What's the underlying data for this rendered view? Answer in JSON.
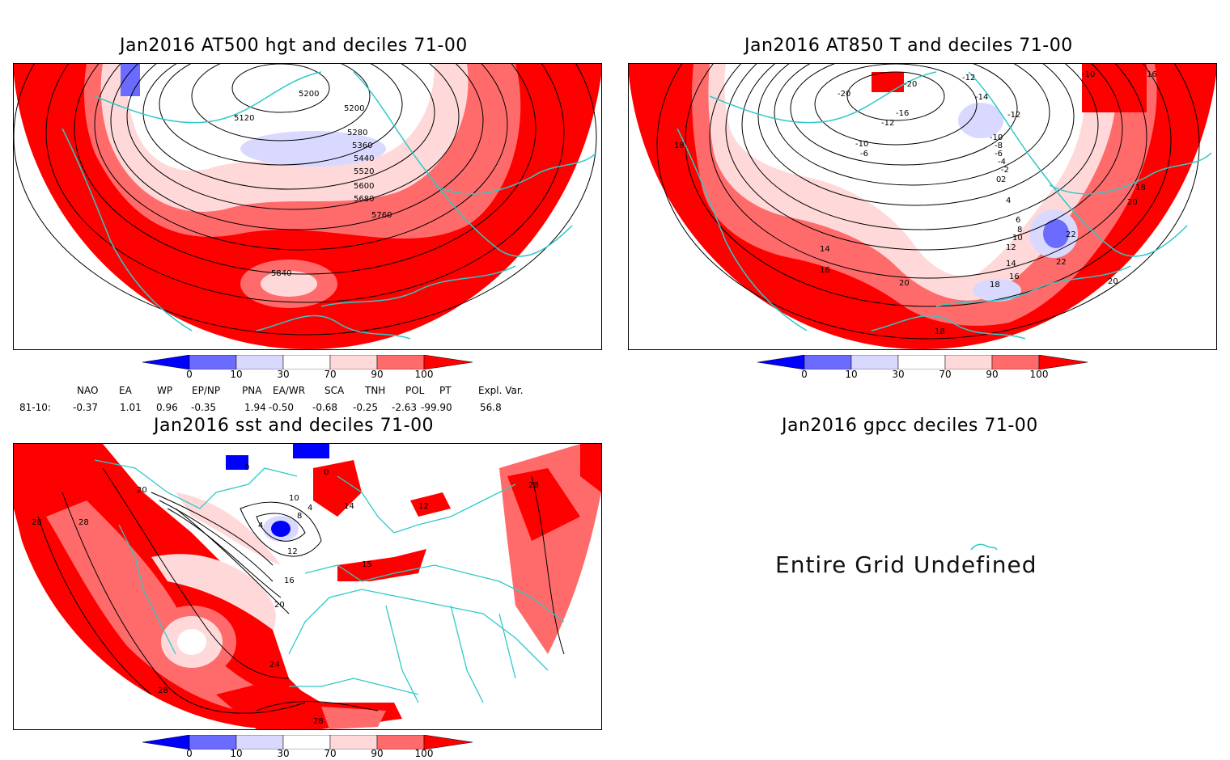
{
  "panels": {
    "z500": {
      "title": "Jan2016 AT500 hgt and deciles 71-00",
      "contour_labels": [
        "5120",
        "5200",
        "5200",
        "5280",
        "5360",
        "5440",
        "5520",
        "5600",
        "5680",
        "5760",
        "5840"
      ]
    },
    "t850": {
      "title": "Jan2016 AT850 T and deciles 71-00",
      "contour_labels": [
        "-20",
        "-20",
        "-12",
        "-14",
        "-16",
        "-12",
        "-10",
        "-8",
        "-6",
        "-10",
        "-6",
        "-4",
        "-2",
        "0",
        "2",
        "4",
        "6",
        "8",
        "10",
        "12",
        "14",
        "16",
        "18",
        "18",
        "14",
        "16",
        "20",
        "22",
        "22",
        "20",
        "18",
        "18",
        "16",
        "-10",
        "-12",
        "20"
      ]
    },
    "sst": {
      "title": "Jan2016 sst and deciles 71-00",
      "contour_labels": [
        "0",
        "0",
        "4",
        "4",
        "8",
        "10",
        "12",
        "16",
        "20",
        "24",
        "28",
        "28",
        "28",
        "28",
        "28",
        "20",
        "12",
        "14",
        "15"
      ]
    },
    "gpcc": {
      "title": "Jan2016 gpcc deciles 71-00",
      "message": "Entire Grid Undefined"
    }
  },
  "colorbar": {
    "labels": [
      "0",
      "10",
      "30",
      "70",
      "90",
      "100"
    ],
    "colors": [
      "#0000ff",
      "#6b6bff",
      "#d9d9ff",
      "#ffffff",
      "#ffd9d9",
      "#ff6b6b",
      "#ff0000"
    ]
  },
  "indices": {
    "row_label": "81-10:",
    "headers": [
      "NAO",
      "EA",
      "WP",
      "EP/NP",
      "PNA",
      "EA/WR",
      "SCA",
      "TNH",
      "POL",
      "PT",
      "Expl. Var."
    ],
    "values": [
      "-0.37",
      "1.01",
      "0.96",
      "-0.35",
      "1.94",
      "-0.50",
      "-0.68",
      "-0.25",
      "-2.63",
      "-99.90",
      "56.8"
    ]
  },
  "style": {
    "coast_color": "#30c8c8",
    "contour_color": "#000000"
  }
}
